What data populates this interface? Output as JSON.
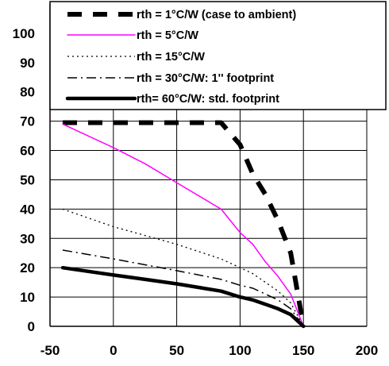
{
  "chart_data": {
    "type": "line",
    "xlim": [
      -50,
      200
    ],
    "ylim": [
      0,
      110
    ],
    "x_ticks": [
      -50,
      0,
      50,
      100,
      150,
      200
    ],
    "y_ticks": [
      0,
      10,
      20,
      30,
      40,
      50,
      60,
      70,
      80,
      90,
      100
    ],
    "grid": true,
    "legend_position": "top-right",
    "series": [
      {
        "name": "rth = 1°C/W (case to ambient)",
        "color": "#000000",
        "style": "thick-dash",
        "points": [
          [
            -40,
            69.5
          ],
          [
            0,
            69.5
          ],
          [
            50,
            69.5
          ],
          [
            85,
            69.5
          ],
          [
            100,
            62
          ],
          [
            110,
            52
          ],
          [
            120,
            45
          ],
          [
            130,
            36
          ],
          [
            140,
            25
          ],
          [
            150,
            0
          ]
        ]
      },
      {
        "name": "rth = 5°C/W",
        "color": "#ff00ff",
        "style": "solid-thin",
        "points": [
          [
            -40,
            69
          ],
          [
            0,
            61
          ],
          [
            25,
            55.5
          ],
          [
            50,
            49
          ],
          [
            85,
            40
          ],
          [
            100,
            32
          ],
          [
            110,
            28
          ],
          [
            120,
            22
          ],
          [
            130,
            17
          ],
          [
            140,
            11
          ],
          [
            150,
            0
          ]
        ]
      },
      {
        "name": "rth = 15°C/W",
        "color": "#000000",
        "style": "dotted",
        "points": [
          [
            -40,
            40
          ],
          [
            0,
            34
          ],
          [
            25,
            31
          ],
          [
            50,
            28
          ],
          [
            85,
            23
          ],
          [
            100,
            20
          ],
          [
            110,
            18
          ],
          [
            120,
            15
          ],
          [
            130,
            12
          ],
          [
            140,
            8
          ],
          [
            150,
            0
          ]
        ]
      },
      {
        "name": "rth = 30°C/W: 1'' footprint",
        "color": "#000000",
        "style": "dash-dot",
        "points": [
          [
            -40,
            26
          ],
          [
            0,
            23
          ],
          [
            25,
            21
          ],
          [
            50,
            19
          ],
          [
            85,
            16
          ],
          [
            100,
            14
          ],
          [
            110,
            13
          ],
          [
            120,
            11
          ],
          [
            130,
            9
          ],
          [
            140,
            6
          ],
          [
            150,
            0
          ]
        ]
      },
      {
        "name": "rth= 60°C/W: std. footprint",
        "color": "#000000",
        "style": "thick-solid",
        "points": [
          [
            -40,
            20
          ],
          [
            0,
            17.5
          ],
          [
            25,
            16
          ],
          [
            50,
            14.5
          ],
          [
            85,
            12
          ],
          [
            100,
            10
          ],
          [
            110,
            9
          ],
          [
            120,
            7.5
          ],
          [
            130,
            6
          ],
          [
            140,
            4
          ],
          [
            150,
            0
          ]
        ]
      }
    ]
  }
}
